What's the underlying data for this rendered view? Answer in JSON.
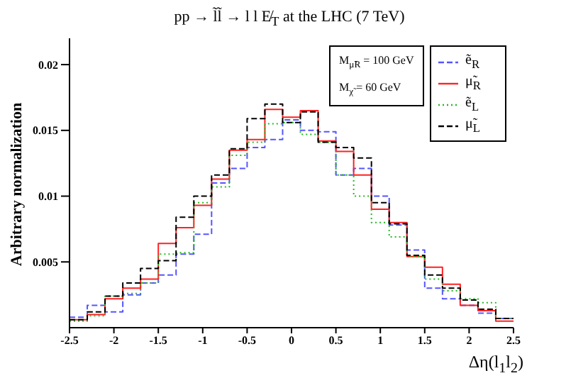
{
  "chart_data": {
    "type": "histogram",
    "title": "pp → l̃l̃ → l l E̸$_{T}$ at the LHC (7 TeV)",
    "xlabel": "Δη(l$_{1}$l$_{2}$)",
    "ylabel": "Arbitrary normalization",
    "annotations": [
      "M$_{μ̃R}$ = 100 GeV",
      "M$_{χ̃}$ = 60 GeV"
    ],
    "bins": [
      -2.5,
      -2.3,
      -2.1,
      -1.9,
      -1.7,
      -1.5,
      -1.3,
      -1.1,
      -0.9,
      -0.7,
      -0.5,
      -0.3,
      -0.1,
      0.1,
      0.3,
      0.5,
      0.7,
      0.9,
      1.1,
      1.3,
      1.5,
      1.7,
      1.9,
      2.1,
      2.3,
      2.5
    ],
    "series": [
      {
        "name": "ẽ$_{R}$",
        "color": "#5555ff",
        "line_style": "dashed",
        "values": [
          0.0008,
          0.0017,
          0.0012,
          0.0025,
          0.0034,
          0.004,
          0.0056,
          0.0071,
          0.011,
          0.0121,
          0.0137,
          0.0143,
          0.0158,
          0.015,
          0.0149,
          0.0116,
          0.0121,
          0.01,
          0.0078,
          0.0059,
          0.003,
          0.0022,
          0.0017,
          0.0011,
          0.0007
        ]
      },
      {
        "name": "μ̃$_{R}$",
        "color": "#ff2222",
        "line_style": "solid",
        "values": [
          0.0006,
          0.001,
          0.0022,
          0.003,
          0.0037,
          0.0064,
          0.0076,
          0.0093,
          0.0113,
          0.0135,
          0.0143,
          0.0166,
          0.016,
          0.0165,
          0.0142,
          0.0134,
          0.0116,
          0.009,
          0.008,
          0.0054,
          0.0046,
          0.0033,
          0.0017,
          0.0013,
          0.0005
        ]
      },
      {
        "name": "ẽ$_{L}$",
        "color": "#22bb22",
        "line_style": "dotted",
        "values": [
          0.0005,
          0.0009,
          0.0024,
          0.0026,
          0.0034,
          0.0056,
          0.0057,
          0.0095,
          0.0107,
          0.0131,
          0.0141,
          0.0155,
          0.0156,
          0.0147,
          0.0141,
          0.0116,
          0.01,
          0.008,
          0.0069,
          0.0054,
          0.0037,
          0.0028,
          0.0022,
          0.0019,
          0.0007
        ]
      },
      {
        "name": "μ̃$_{L}$",
        "color": "#000000",
        "line_style": "dashed",
        "values": [
          0.0006,
          0.0012,
          0.0024,
          0.0034,
          0.0045,
          0.0051,
          0.0084,
          0.01,
          0.0116,
          0.0136,
          0.0159,
          0.017,
          0.0156,
          0.0164,
          0.0141,
          0.0137,
          0.0129,
          0.0095,
          0.0079,
          0.0055,
          0.004,
          0.003,
          0.0021,
          0.0014,
          0.0007
        ]
      }
    ],
    "xlim": [
      -2.5,
      2.5
    ],
    "xticks": [
      -2.5,
      -2,
      -1.5,
      -1,
      -0.5,
      0,
      0.5,
      1,
      1.5,
      2,
      2.5
    ],
    "ylim": [
      0,
      0.022
    ],
    "yticks": [
      0.005,
      0.01,
      0.015,
      0.02
    ],
    "grid": false,
    "legend": "top right"
  }
}
